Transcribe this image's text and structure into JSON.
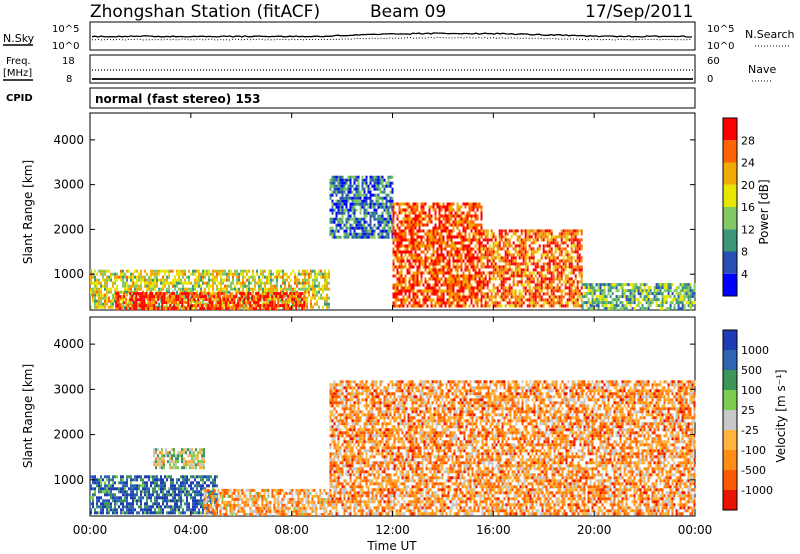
{
  "header": {
    "station": "Zhongshan Station (fitACF)",
    "beam": "Beam 09",
    "date": "17/Sep/2011"
  },
  "status_panels": {
    "nsky_label": "N.Sky",
    "nsky_ticks": [
      "10^5",
      "10^0"
    ],
    "nsearch_label": "N.Search",
    "nsearch_ticks": [
      "10^5",
      "10^0"
    ],
    "freq_label_1": "Freq.",
    "freq_label_2": "[MHz]",
    "freq_ticks": [
      "18",
      "8"
    ],
    "nave_label": "Nave",
    "nave_ticks": [
      "60",
      "0"
    ],
    "cpid_label": "CPID",
    "cpid_text": "normal (fast stereo) 153"
  },
  "colors": {
    "power_scale": [
      "#0000ff",
      "#2850b4",
      "#3c9678",
      "#82c864",
      "#e6e600",
      "#f0aa00",
      "#ff6400",
      "#ff0000"
    ],
    "velocity_scale": [
      "#1e3cb4",
      "#2d64b4",
      "#3c965a",
      "#7dcd50",
      "#c8c8c8",
      "#ffb43c",
      "#ff8c14",
      "#ff5a00",
      "#e61400"
    ]
  },
  "chart_data": [
    {
      "type": "heatmap",
      "name": "Power",
      "ylabel": "Slant Range [km]",
      "yticks": [
        "1000",
        "2000",
        "3000",
        "4000"
      ],
      "ylim": [
        200,
        4600
      ],
      "xlim": [
        "00:00",
        "24:00"
      ],
      "colorbar_label": "Power [dB]",
      "colorbar_ticks": [
        "4",
        "8",
        "12",
        "16",
        "20",
        "24",
        "28"
      ],
      "features": [
        {
          "t0": 0.0,
          "t1": 9.5,
          "r0": 250,
          "r1": 1100,
          "level": 0.55
        },
        {
          "t0": 1.0,
          "t1": 8.5,
          "r0": 250,
          "r1": 600,
          "level": 0.9
        },
        {
          "t0": 9.5,
          "t1": 12.0,
          "r0": 1800,
          "r1": 3200,
          "level": 0.25
        },
        {
          "t0": 12.0,
          "t1": 15.5,
          "r0": 300,
          "r1": 2600,
          "level": 0.85
        },
        {
          "t0": 15.5,
          "t1": 19.5,
          "r0": 300,
          "r1": 2000,
          "level": 0.8
        },
        {
          "t0": 19.5,
          "t1": 24.0,
          "r0": 250,
          "r1": 800,
          "level": 0.4
        }
      ]
    },
    {
      "type": "heatmap",
      "name": "Velocity",
      "ylabel": "Slant Range [km]",
      "yticks": [
        "1000",
        "2000",
        "3000",
        "4000"
      ],
      "ylim": [
        200,
        4600
      ],
      "xlabel": "Time UT",
      "xticks": [
        "00:00",
        "04:00",
        "08:00",
        "12:00",
        "16:00",
        "20:00",
        "00:00"
      ],
      "colorbar_label": "Velocity [m s⁻¹]",
      "colorbar_ticks": [
        "1000",
        "500",
        "100",
        "25",
        "-25",
        "-100",
        "-500",
        "-1000"
      ],
      "features": [
        {
          "t0": 0.0,
          "t1": 5.0,
          "r0": 250,
          "r1": 1100,
          "level": 0.15
        },
        {
          "t0": 2.5,
          "t1": 4.5,
          "r0": 1300,
          "r1": 1700,
          "level": 0.45
        },
        {
          "t0": 4.5,
          "t1": 9.5,
          "r0": 250,
          "r1": 800,
          "level": 0.65
        },
        {
          "t0": 9.5,
          "t1": 24.0,
          "r0": 250,
          "r1": 3200,
          "level": 0.7
        }
      ]
    }
  ]
}
